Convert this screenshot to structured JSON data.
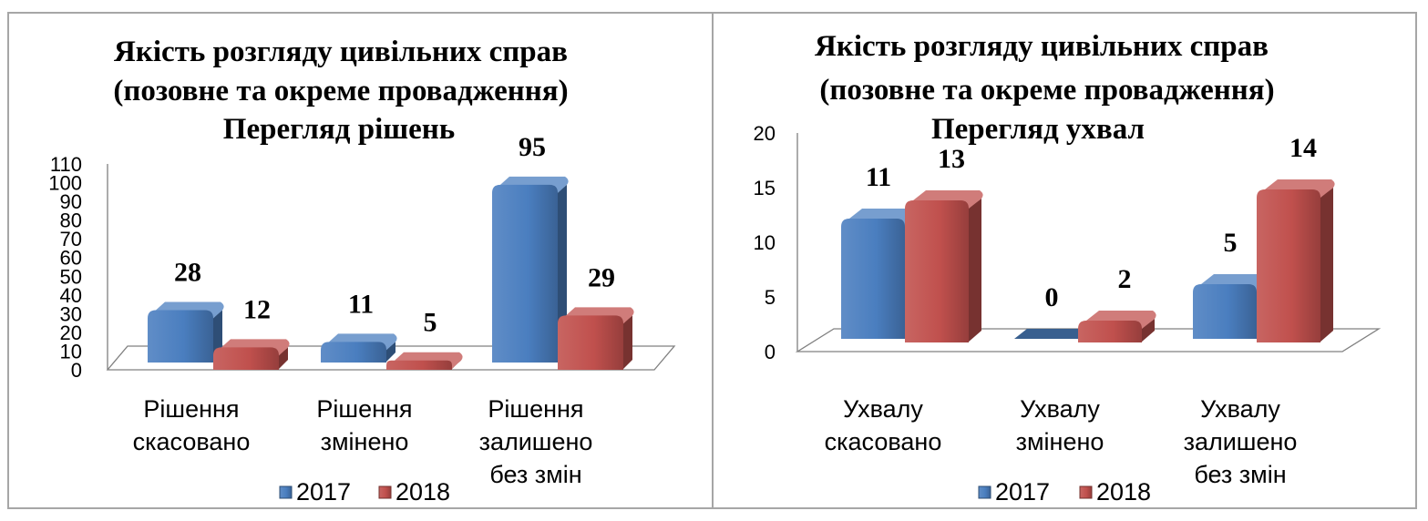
{
  "colors": {
    "series_2017": "#4a7ebf",
    "series_2018": "#c0504d"
  },
  "chart_data": [
    {
      "type": "bar",
      "title_lines": [
        "Якість розгляду цивільних справ",
        "(позовне та окреме провадження)",
        "Перегляд рішень"
      ],
      "categories": [
        [
          "Рішення",
          "скасовано"
        ],
        [
          "Рішення",
          "змінено"
        ],
        [
          "Рішення",
          "залишено",
          "без змін"
        ]
      ],
      "series": [
        {
          "name": "2017",
          "values": [
            28,
            11,
            95
          ]
        },
        {
          "name": "2018",
          "values": [
            12,
            5,
            29
          ]
        }
      ],
      "y_ticks": [
        0,
        10,
        20,
        30,
        40,
        50,
        60,
        70,
        80,
        90,
        100,
        110
      ],
      "ylim": [
        0,
        110
      ],
      "grid": false,
      "legend": "bottom"
    },
    {
      "type": "bar",
      "title_lines": [
        "Якість розгляду цивільних справ",
        "(позовне та окреме провадження)",
        "Перегляд ухвал"
      ],
      "categories": [
        [
          "Ухвалу",
          "скасовано"
        ],
        [
          "Ухвалу",
          "змінено"
        ],
        [
          "Ухвалу",
          "залишено",
          "без змін"
        ]
      ],
      "series": [
        {
          "name": "2017",
          "values": [
            11,
            0,
            5
          ]
        },
        {
          "name": "2018",
          "values": [
            13,
            2,
            14
          ]
        }
      ],
      "y_ticks": [
        0,
        5,
        10,
        15,
        20
      ],
      "ylim": [
        0,
        20
      ],
      "grid": false,
      "legend": "bottom"
    }
  ]
}
